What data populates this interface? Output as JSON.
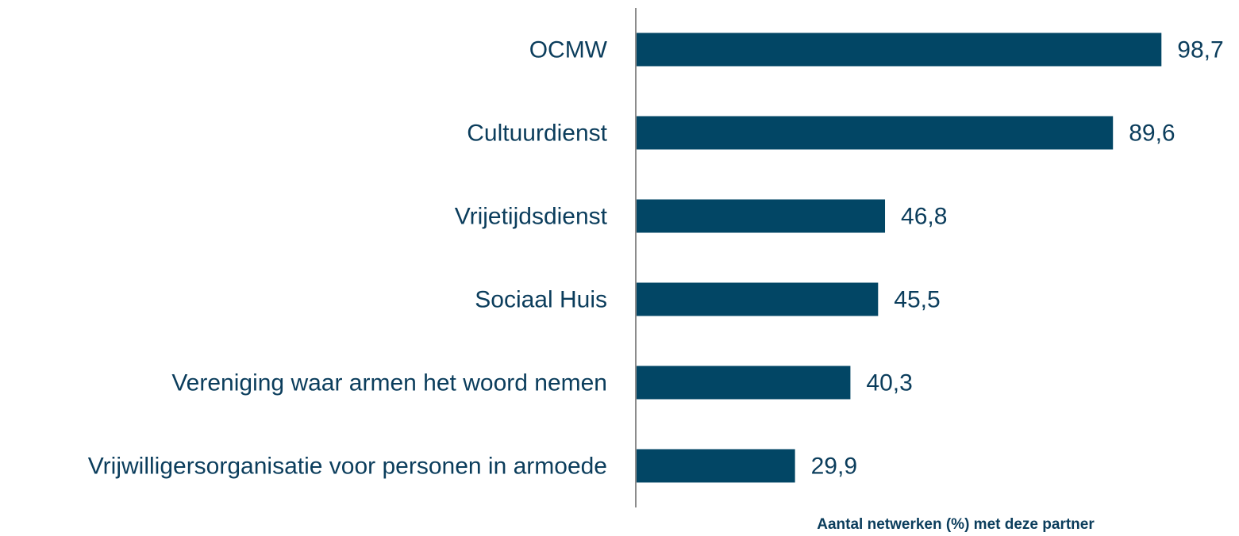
{
  "chart_data": {
    "type": "barh",
    "x_label": "Aantal netwerken (%) met deze partner",
    "categories": [
      "OCMW",
      "Cultuurdienst",
      "Vrijetijdsdienst",
      "Sociaal Huis",
      "Vereniging waar armen het woord nemen",
      "Vrijwilligersorganisatie voor personen in armoede"
    ],
    "values": [
      98.7,
      89.6,
      46.8,
      45.5,
      40.3,
      29.9
    ],
    "value_labels": [
      "98,7",
      "89,6",
      "46,8",
      "45,5",
      "40,3",
      "29,9"
    ],
    "color": "#024665",
    "xlim": [
      0,
      100
    ],
    "grid": false
  }
}
